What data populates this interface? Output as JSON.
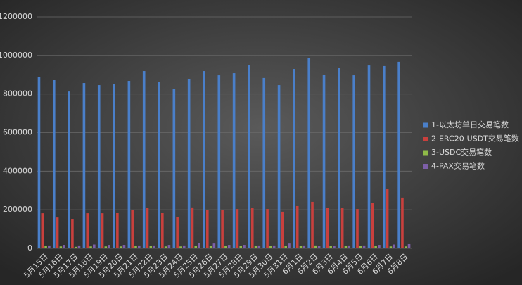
{
  "chart_data": {
    "type": "bar",
    "categories": [
      "5月15日",
      "5月16日",
      "5月17日",
      "5月18日",
      "5月19日",
      "5月20日",
      "5月21日",
      "5月22日",
      "5月23日",
      "5月24日",
      "5月25日",
      "5月26日",
      "5月27日",
      "5月28日",
      "5月29日",
      "5月30日",
      "5月31日",
      "6月1日",
      "6月2日",
      "6月3日",
      "6月4日",
      "6月5日",
      "6月6日",
      "6月7日",
      "6月8日"
    ],
    "series": [
      {
        "name": "1-以太坊单日交易笔数",
        "color": "#4a7fc9",
        "values": [
          890000,
          875000,
          813000,
          857000,
          846000,
          853000,
          868000,
          919000,
          864000,
          828000,
          879000,
          919000,
          897000,
          908000,
          952000,
          883000,
          846000,
          930000,
          985000,
          901000,
          934000,
          897000,
          948000,
          945000,
          967000
        ]
      },
      {
        "name": "2-ERC20-USDT交易笔数",
        "color": "#c9403d",
        "values": [
          182000,
          160000,
          153000,
          182000,
          182000,
          186000,
          200000,
          208000,
          186000,
          164000,
          212000,
          200000,
          200000,
          204000,
          208000,
          204000,
          190000,
          219000,
          241000,
          208000,
          208000,
          204000,
          237000,
          310000,
          263000
        ]
      },
      {
        "name": "3-USDC交易笔数",
        "color": "#8fba48",
        "values": [
          12000,
          10000,
          8000,
          10000,
          10000,
          10000,
          12000,
          12000,
          10000,
          10000,
          12000,
          12000,
          12000,
          12000,
          12000,
          12000,
          12000,
          14000,
          15000,
          14000,
          12000,
          12000,
          12000,
          10000,
          10000
        ]
      },
      {
        "name": "4-PAX交易笔数",
        "color": "#7d5fa8",
        "values": [
          15000,
          18000,
          15000,
          20000,
          18000,
          18000,
          15000,
          15000,
          18000,
          15000,
          28000,
          25000,
          18000,
          18000,
          15000,
          15000,
          25000,
          15000,
          12000,
          12000,
          15000,
          15000,
          18000,
          20000,
          22000
        ]
      }
    ],
    "ylim": [
      0,
      1200000
    ],
    "yticks": [
      0,
      200000,
      400000,
      600000,
      800000,
      1000000,
      1200000
    ],
    "grid": true,
    "legend": "right"
  }
}
